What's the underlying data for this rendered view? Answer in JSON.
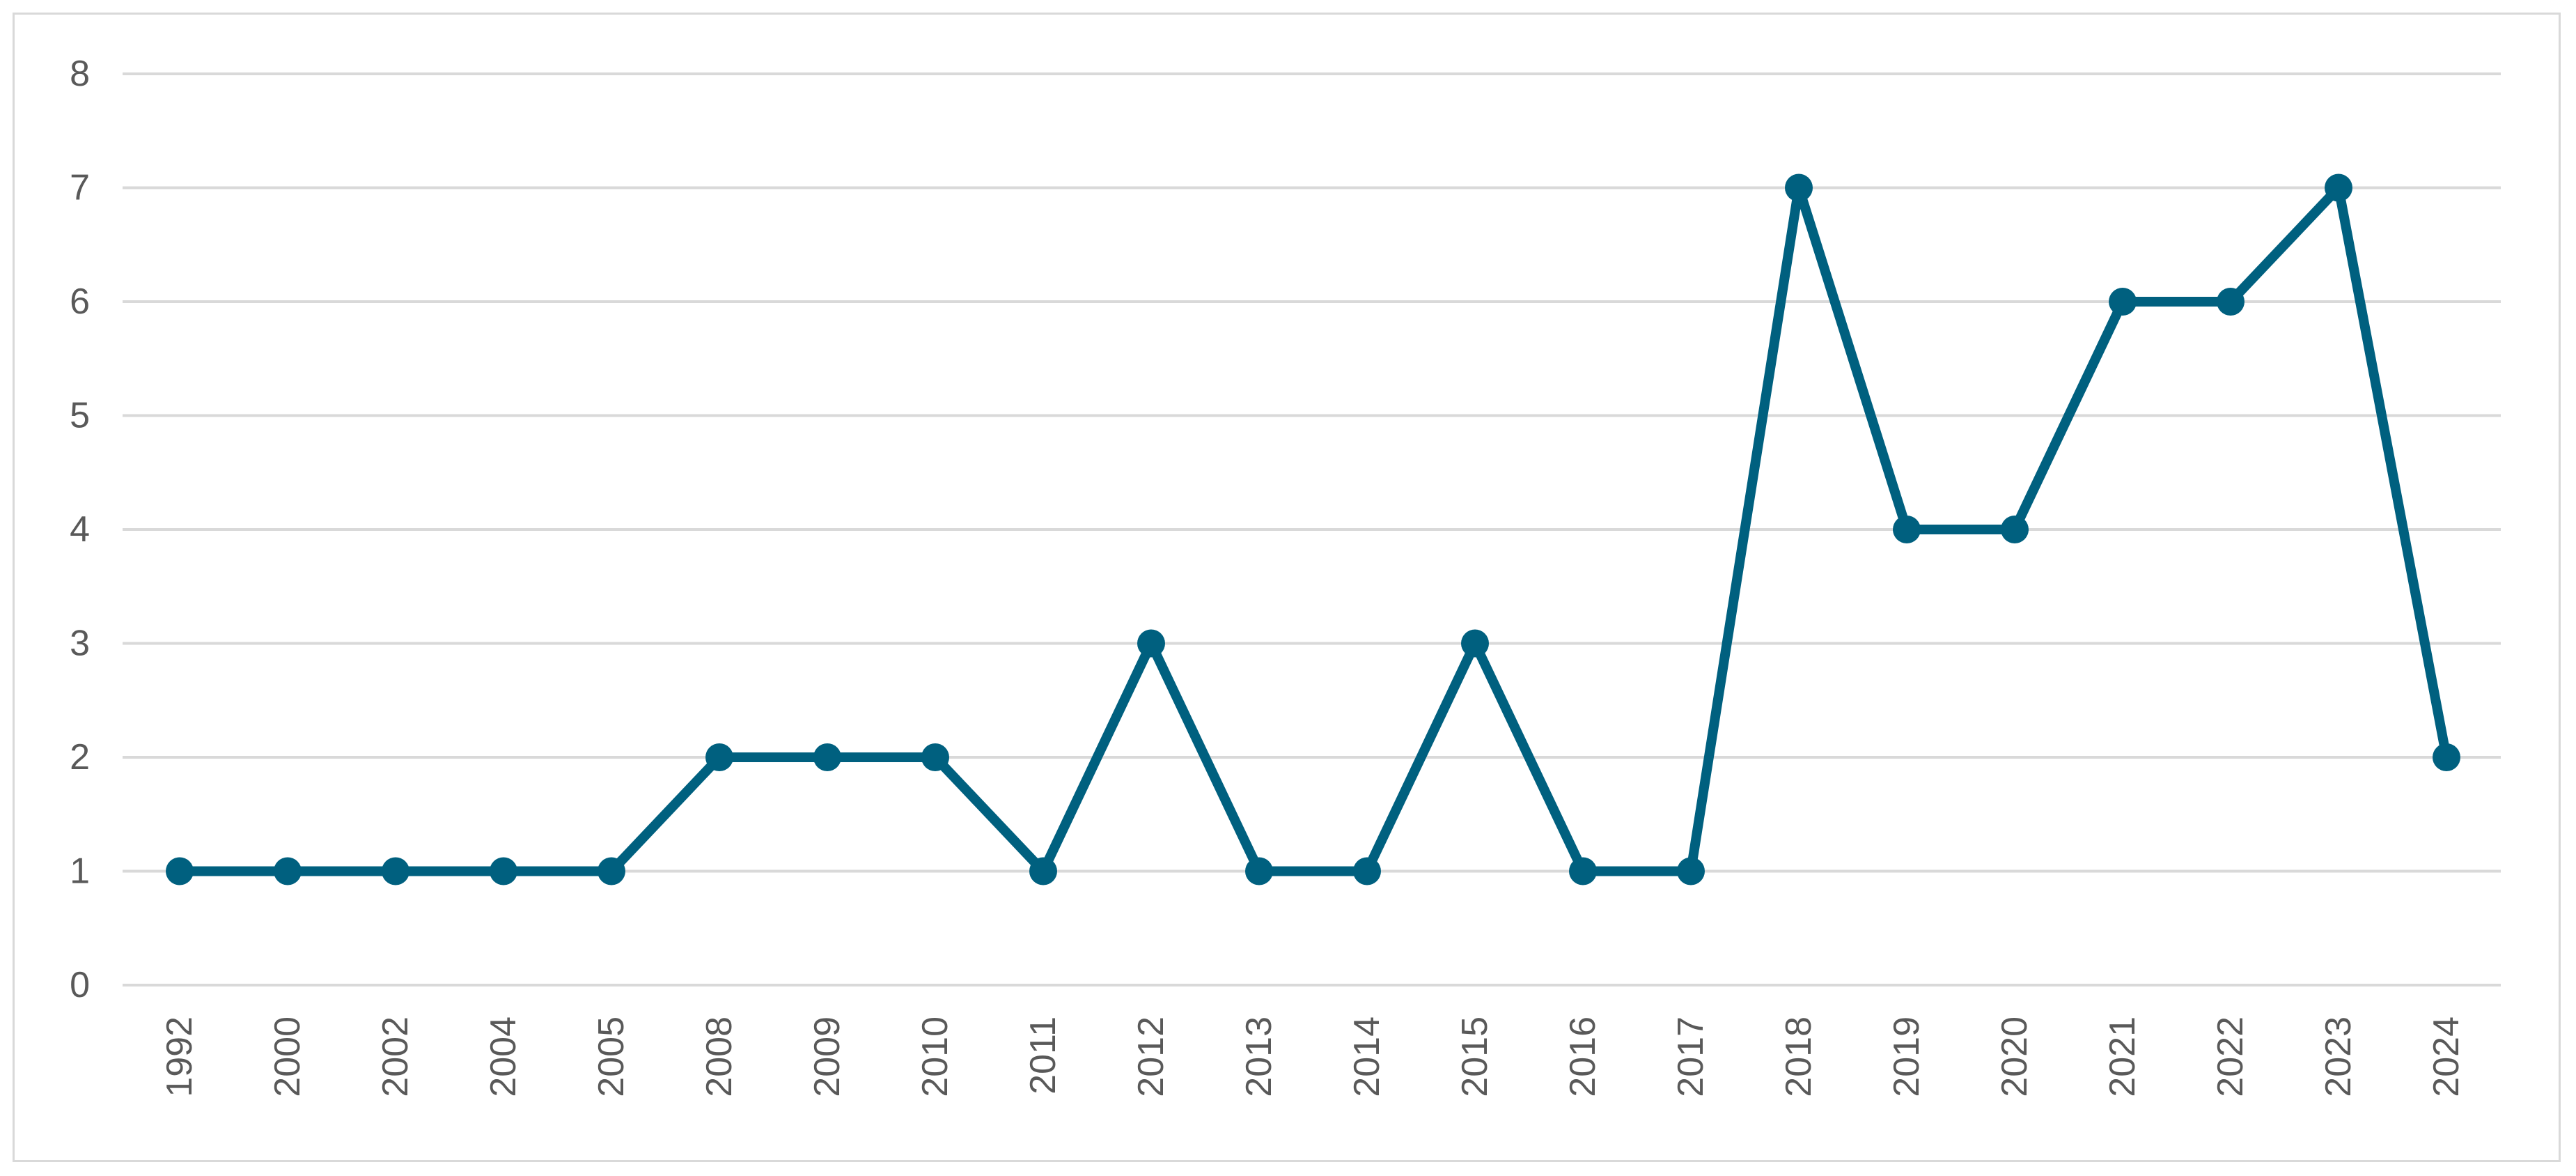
{
  "chart_data": {
    "type": "line",
    "title": "",
    "xlabel": "",
    "ylabel": "",
    "categories": [
      "1992",
      "2000",
      "2002",
      "2004",
      "2005",
      "2008",
      "2009",
      "2010",
      "2011",
      "2012",
      "2013",
      "2014",
      "2015",
      "2016",
      "2017",
      "2018",
      "2019",
      "2020",
      "2021",
      "2022",
      "2023",
      "2024"
    ],
    "series": [
      {
        "values": [
          1,
          1,
          1,
          1,
          1,
          2,
          2,
          2,
          1,
          3,
          1,
          1,
          3,
          1,
          1,
          7,
          4,
          4,
          6,
          6,
          7,
          2
        ],
        "color": "#00607f",
        "markers": "circle"
      }
    ],
    "ylim": [
      0,
      8
    ],
    "yticks": [
      "0",
      "1",
      "2",
      "3",
      "4",
      "5",
      "6",
      "7",
      "8"
    ],
    "grid": "horizontal",
    "legend": "none"
  }
}
